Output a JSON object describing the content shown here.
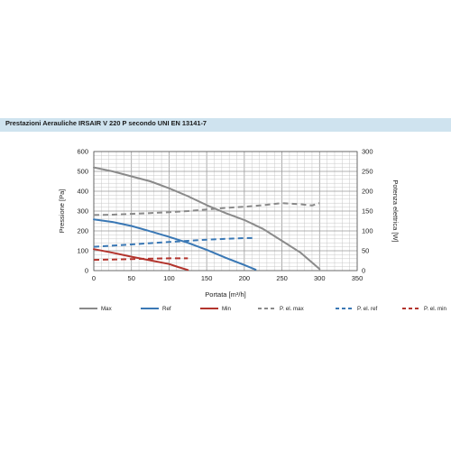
{
  "header": {
    "title": "Prestazioni Aerauliche IRSAIR V 220 P secondo UNI EN 13141-7"
  },
  "colors": {
    "max": "#8a8a8a",
    "ref": "#3a78b5",
    "min": "#b3342d",
    "title_bg": "#cfe3ef"
  },
  "chart_data": {
    "type": "line",
    "xlabel": "Portata [m³/h]",
    "ylabel": "Pressione [Pa]",
    "y2label": "Potenza elettrica [W]",
    "xlim": [
      0,
      350
    ],
    "ylim": [
      0,
      600
    ],
    "y2lim": [
      0,
      300
    ],
    "x_ticks": [
      "0",
      "50",
      "100",
      "150",
      "200",
      "250",
      "300",
      "350"
    ],
    "y_ticks": [
      "0",
      "100",
      "200",
      "300",
      "400",
      "500",
      "600"
    ],
    "y2_ticks": [
      "0",
      "50",
      "100",
      "150",
      "200",
      "250",
      "300"
    ],
    "grid": true,
    "legend_position": "bottom",
    "series": [
      {
        "name": "Max",
        "axis": "left",
        "style": "solid",
        "color_key": "max",
        "x": [
          0,
          25,
          50,
          75,
          100,
          125,
          150,
          175,
          200,
          225,
          250,
          275,
          300
        ],
        "y": [
          520,
          500,
          475,
          450,
          415,
          375,
          330,
          290,
          255,
          210,
          150,
          90,
          8
        ]
      },
      {
        "name": "Ref",
        "axis": "left",
        "style": "solid",
        "color_key": "ref",
        "x": [
          0,
          25,
          50,
          75,
          100,
          125,
          150,
          175,
          200,
          215
        ],
        "y": [
          258,
          245,
          225,
          198,
          170,
          140,
          105,
          65,
          28,
          5
        ]
      },
      {
        "name": "Min",
        "axis": "left",
        "style": "solid",
        "color_key": "min",
        "x": [
          0,
          25,
          50,
          75,
          100,
          112,
          125
        ],
        "y": [
          108,
          90,
          70,
          52,
          33,
          18,
          3
        ]
      },
      {
        "name": "P. el. max",
        "axis": "right",
        "style": "dashed",
        "color_key": "max",
        "x": [
          0,
          25,
          50,
          75,
          100,
          125,
          150,
          175,
          200,
          225,
          250,
          275,
          290,
          300
        ],
        "y": [
          140,
          141,
          143,
          145,
          147,
          150,
          154,
          158,
          161,
          165,
          170,
          167,
          164,
          170
        ]
      },
      {
        "name": "P. el. ref",
        "axis": "right",
        "style": "dashed",
        "color_key": "ref",
        "x": [
          0,
          25,
          50,
          75,
          100,
          125,
          150,
          175,
          200,
          215
        ],
        "y": [
          60,
          63,
          66,
          69,
          72,
          75,
          78,
          80,
          82,
          82
        ]
      },
      {
        "name": "P. el. min",
        "axis": "right",
        "style": "dashed",
        "color_key": "min",
        "x": [
          0,
          25,
          50,
          75,
          100,
          112,
          125
        ],
        "y": [
          27,
          28,
          29,
          30,
          31,
          31,
          31
        ]
      }
    ]
  }
}
